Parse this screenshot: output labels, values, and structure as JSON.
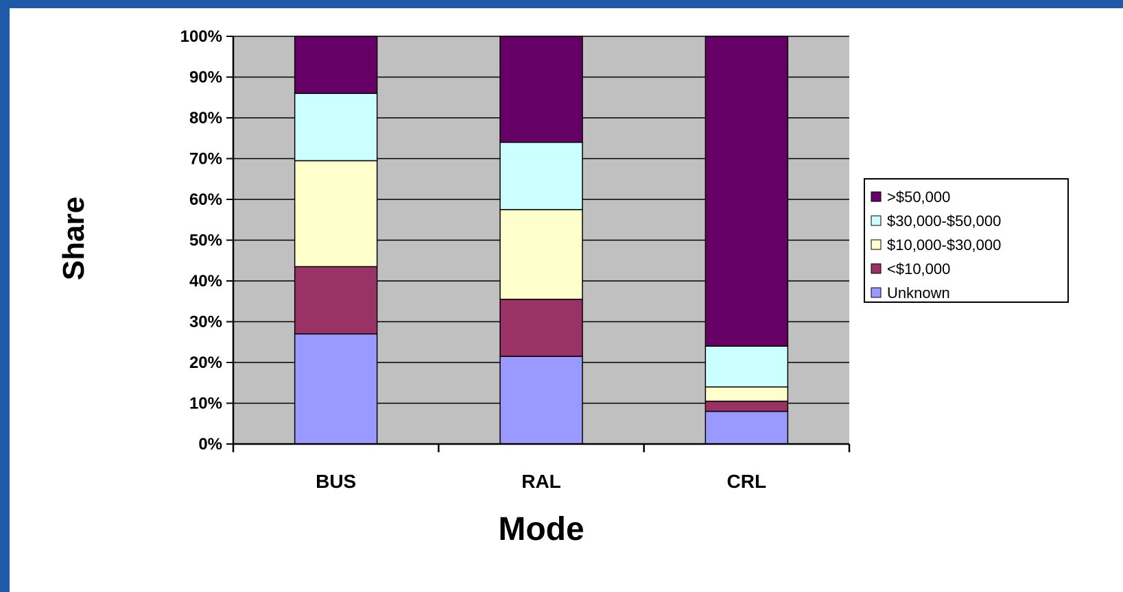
{
  "chart_data": {
    "type": "bar",
    "stacked": true,
    "xlabel": "Mode",
    "ylabel": "Share",
    "ylim": [
      0,
      100
    ],
    "y_tick_step": 10,
    "y_tick_suffix": "%",
    "grid": true,
    "legend_position": "right",
    "categories": [
      "BUS",
      "RAL",
      "CRL"
    ],
    "series": [
      {
        "name": "Unknown",
        "color": "#9999ff",
        "values": [
          27,
          21.5,
          8
        ]
      },
      {
        "name": "<$10,000",
        "color": "#993366",
        "values": [
          16.5,
          14,
          2.5
        ]
      },
      {
        "name": "$10,000-$30,000",
        "color": "#ffffcc",
        "values": [
          26,
          22,
          3.5
        ]
      },
      {
        "name": "$30,000-$50,000",
        "color": "#ccffff",
        "values": [
          16.5,
          16.5,
          10
        ]
      },
      {
        "name": ">$50,000",
        "color": "#660066",
        "values": [
          14,
          26,
          76
        ]
      }
    ],
    "plot_background": "#c0c0c0"
  }
}
